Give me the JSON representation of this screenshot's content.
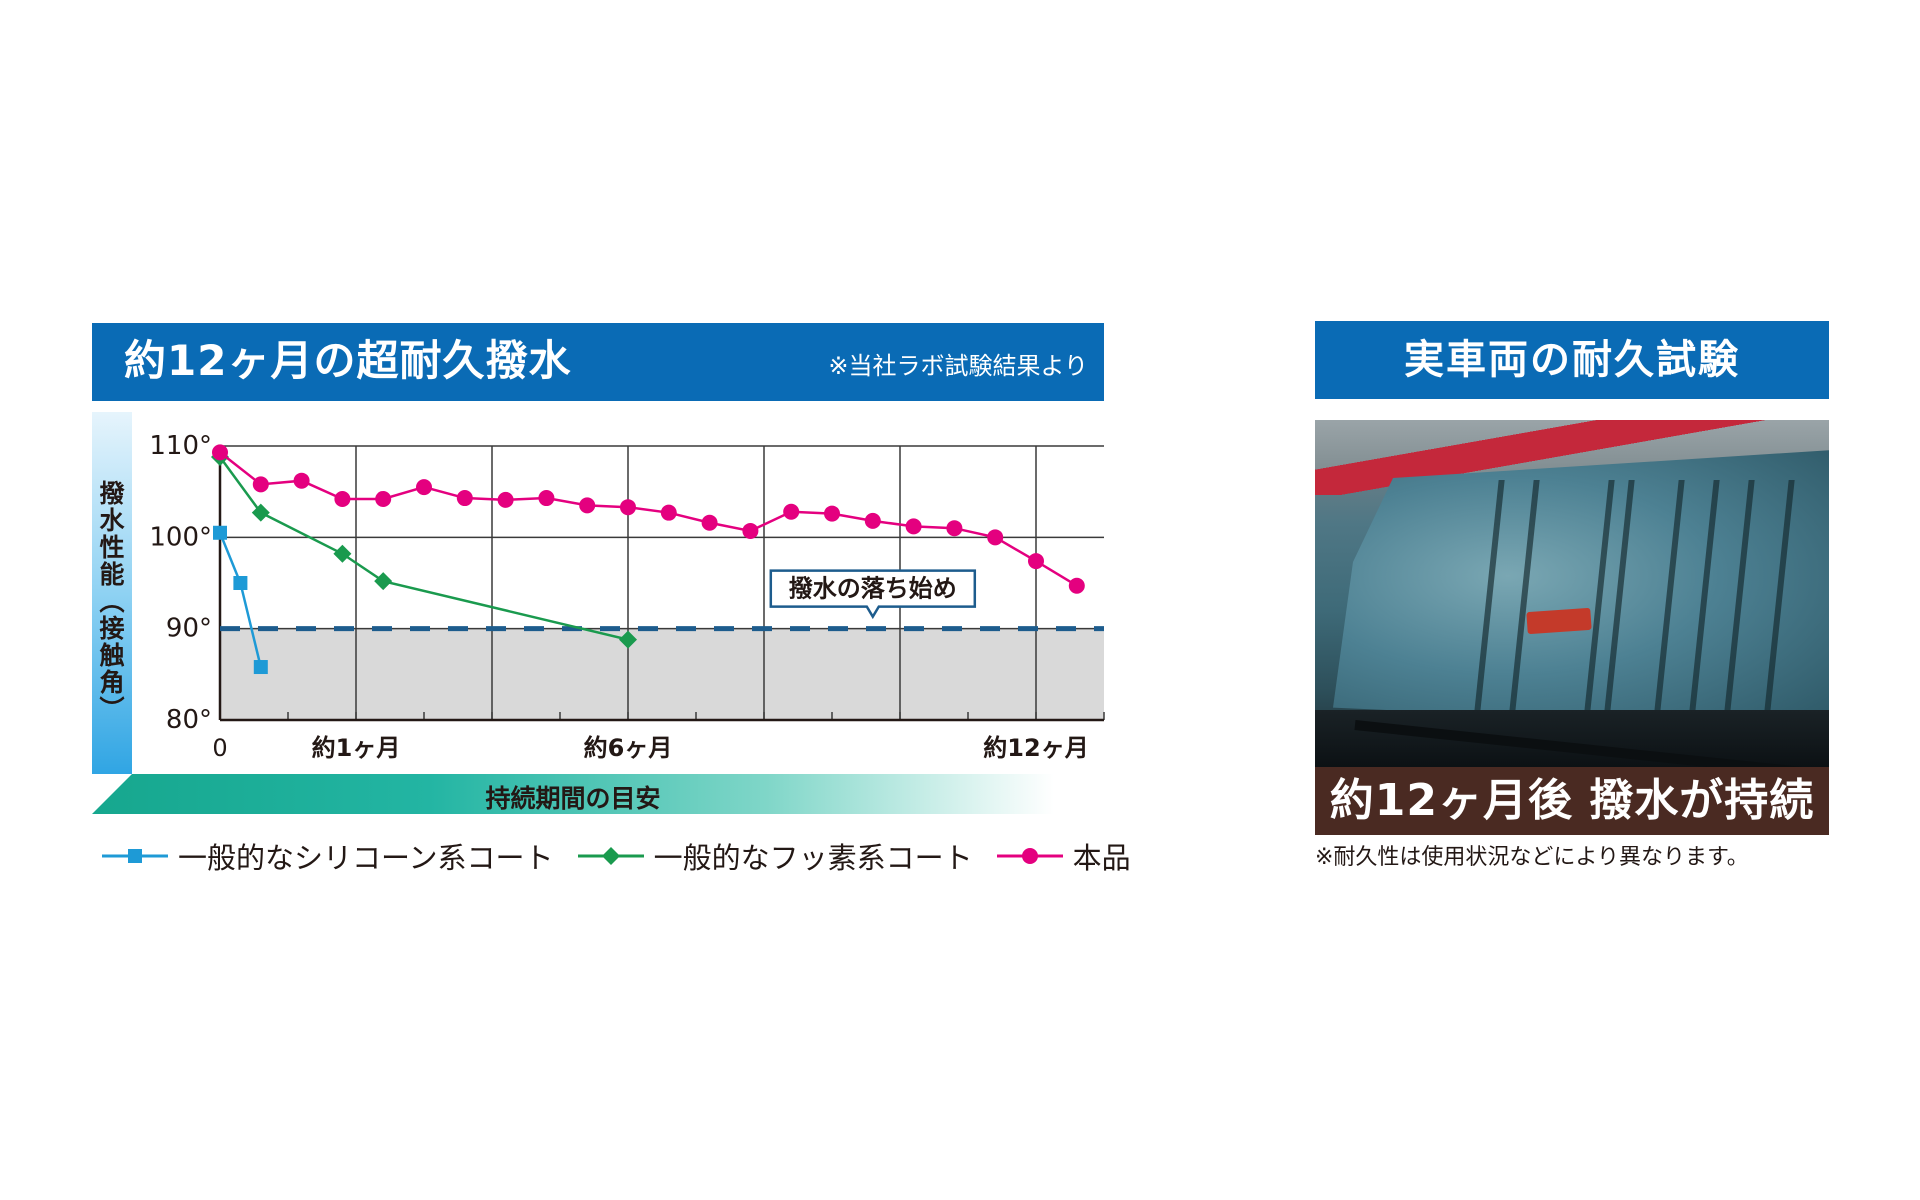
{
  "left_panel": {
    "title": "約12ヶ月の超耐久撥水",
    "note": "※当社ラボ試験結果より",
    "y_axis_label": "撥水性能（接触角）",
    "x_axis_label": "持続期間の目安"
  },
  "right_panel": {
    "title": "実車両の耐久試験",
    "caption": "約12ヶ月後 撥水が持続",
    "footnote": "※耐久性は使用状況などにより異なります。"
  },
  "legend": [
    {
      "label": "一般的なシリコーン系コート",
      "color": "#1e9ad6",
      "marker": "square"
    },
    {
      "label": "一般的なフッ素系コート",
      "color": "#1a9a4e",
      "marker": "diamond"
    },
    {
      "label": "本品",
      "color": "#e4007f",
      "marker": "circle"
    }
  ],
  "chart_data": {
    "type": "line",
    "title": "約12ヶ月の超耐久撥水",
    "xlabel": "持続期間の目安",
    "ylabel": "撥水性能（接触角）",
    "xlim": [
      0,
      13
    ],
    "ylim": [
      80,
      110
    ],
    "x_ticks": [
      {
        "value": 0,
        "label": "0"
      },
      {
        "value": 2,
        "label": "約1ヶ月"
      },
      {
        "value": 6,
        "label": "約6ヶ月"
      },
      {
        "value": 12,
        "label": "約12ヶ月"
      }
    ],
    "y_ticks": [
      {
        "value": 80,
        "label": "80°"
      },
      {
        "value": 90,
        "label": "90°"
      },
      {
        "value": 100,
        "label": "100°"
      },
      {
        "value": 110,
        "label": "110°"
      }
    ],
    "grid": true,
    "threshold": {
      "value": 90,
      "label": "撥水の落ち始め",
      "label_x": 9.6
    },
    "below_threshold_fill": "#d9d9d9",
    "series": [
      {
        "name": "一般的なシリコーン系コート",
        "color": "#1e9ad6",
        "marker": "square",
        "points": [
          [
            0,
            100.5
          ],
          [
            0.3,
            95
          ],
          [
            0.6,
            85.8
          ]
        ]
      },
      {
        "name": "一般的なフッ素系コート",
        "color": "#1a9a4e",
        "marker": "diamond",
        "points": [
          [
            0,
            108.8
          ],
          [
            0.6,
            102.7
          ],
          [
            1.8,
            98.2
          ],
          [
            2.4,
            95.2
          ],
          [
            6,
            88.8
          ]
        ]
      },
      {
        "name": "本品",
        "color": "#e4007f",
        "marker": "circle",
        "points": [
          [
            0,
            109.3
          ],
          [
            0.6,
            105.8
          ],
          [
            1.2,
            106.2
          ],
          [
            1.8,
            104.2
          ],
          [
            2.4,
            104.2
          ],
          [
            3.0,
            105.5
          ],
          [
            3.6,
            104.3
          ],
          [
            4.2,
            104.1
          ],
          [
            4.8,
            104.3
          ],
          [
            5.4,
            103.5
          ],
          [
            6.0,
            103.3
          ],
          [
            6.6,
            102.7
          ],
          [
            7.2,
            101.6
          ],
          [
            7.8,
            100.7
          ],
          [
            8.4,
            102.8
          ],
          [
            9.0,
            102.6
          ],
          [
            9.6,
            101.8
          ],
          [
            10.2,
            101.2
          ],
          [
            10.8,
            101.0
          ],
          [
            11.4,
            100.0
          ],
          [
            12.0,
            97.4
          ],
          [
            12.6,
            94.7
          ]
        ]
      }
    ]
  }
}
